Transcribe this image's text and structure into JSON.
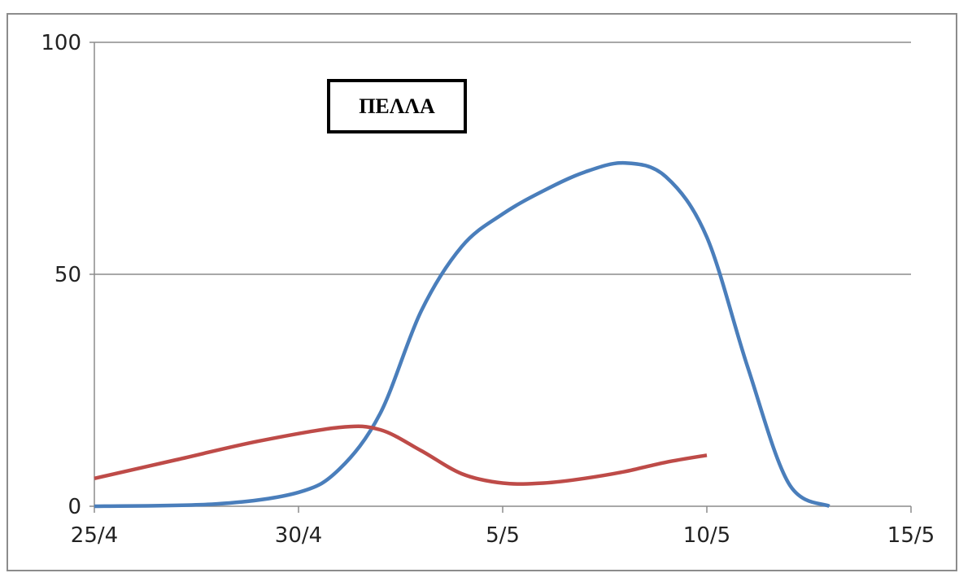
{
  "chart_data": {
    "type": "line",
    "title": "ΠΕΛΛΑ",
    "xlabel": "",
    "ylabel": "",
    "x_ticks": [
      "25/4",
      "30/4",
      "5/5",
      "10/5",
      "15/5"
    ],
    "x_tick_values": [
      0,
      5,
      10,
      15,
      20
    ],
    "y_ticks": [
      0,
      50,
      100
    ],
    "xlim": [
      0,
      20
    ],
    "ylim": [
      0,
      100
    ],
    "grid": "horizontal",
    "legend": "none",
    "series": [
      {
        "color": "#4a7ebb",
        "x": [
          0,
          3,
          5,
          6,
          7,
          8,
          9,
          10,
          11,
          12,
          13,
          14,
          15,
          16,
          17,
          18
        ],
        "y": [
          0,
          0.5,
          3,
          8,
          20,
          42,
          56,
          63,
          68,
          72,
          74,
          71,
          58,
          30,
          5,
          0
        ]
      },
      {
        "color": "#be4b48",
        "x": [
          0,
          2,
          4,
          6,
          7,
          8,
          9,
          10,
          11,
          12,
          13,
          14,
          15
        ],
        "y": [
          6,
          10,
          14,
          17,
          16.5,
          12,
          7,
          5,
          5,
          6,
          7.5,
          9.5,
          11
        ]
      }
    ]
  }
}
